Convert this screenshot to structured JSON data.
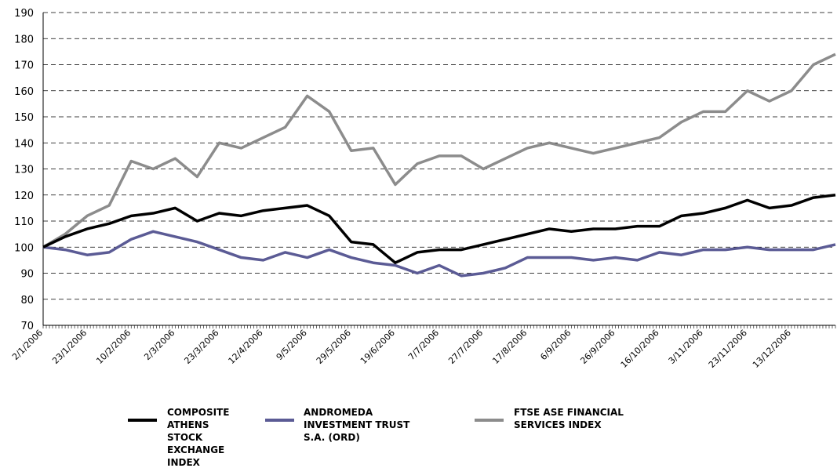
{
  "chart_data": {
    "type": "line",
    "categories": [
      "2/1/2006",
      null,
      "23/1/2006",
      null,
      "10/2/2006",
      null,
      "2/3/2006",
      null,
      "23/3/2006",
      null,
      "12/4/2006",
      null,
      "9/5/2006",
      null,
      "29/5/2006",
      null,
      "19/6/2006",
      null,
      "7/7/2006",
      null,
      "27/7/2006",
      null,
      "17/8/2006",
      null,
      "6/9/2006",
      null,
      "26/9/2006",
      null,
      "16/10/2006",
      null,
      "3/11/2006",
      null,
      "23/11/2006",
      null,
      "13/12/2006",
      null,
      null
    ],
    "series": [
      {
        "name": "COMPOSITE ATHENS STOCK EXCHANGE INDEX",
        "color": "#000000",
        "values": [
          100,
          104,
          107,
          109,
          112,
          113,
          115,
          110,
          113,
          112,
          114,
          115,
          116,
          112,
          102,
          101,
          94,
          98,
          99,
          99,
          101,
          103,
          105,
          107,
          106,
          107,
          107,
          108,
          108,
          112,
          113,
          115,
          118,
          115,
          116,
          119,
          120
        ]
      },
      {
        "name": "ANDROMEDA INVESTMENT TRUST S.A. (ORD)",
        "color": "#5b5b95",
        "values": [
          100,
          99,
          97,
          98,
          103,
          106,
          104,
          102,
          99,
          96,
          95,
          98,
          96,
          99,
          96,
          94,
          93,
          90,
          93,
          89,
          90,
          92,
          96,
          96,
          96,
          95,
          96,
          95,
          98,
          97,
          99,
          99,
          100,
          99,
          99,
          99,
          101
        ]
      },
      {
        "name": "FTSE ASE FINANCIAL SERVICES INDEX",
        "color": "#8c8c8c",
        "values": [
          100,
          105,
          112,
          116,
          133,
          130,
          134,
          127,
          140,
          138,
          142,
          146,
          158,
          152,
          137,
          138,
          124,
          132,
          135,
          135,
          130,
          134,
          138,
          140,
          138,
          136,
          138,
          140,
          142,
          148,
          152,
          152,
          160,
          156,
          160,
          170,
          174
        ]
      }
    ],
    "ylim": [
      70,
      190
    ],
    "yticks": [
      70,
      80,
      90,
      100,
      110,
      120,
      130,
      140,
      150,
      160,
      170,
      180,
      190
    ],
    "grid": true
  }
}
